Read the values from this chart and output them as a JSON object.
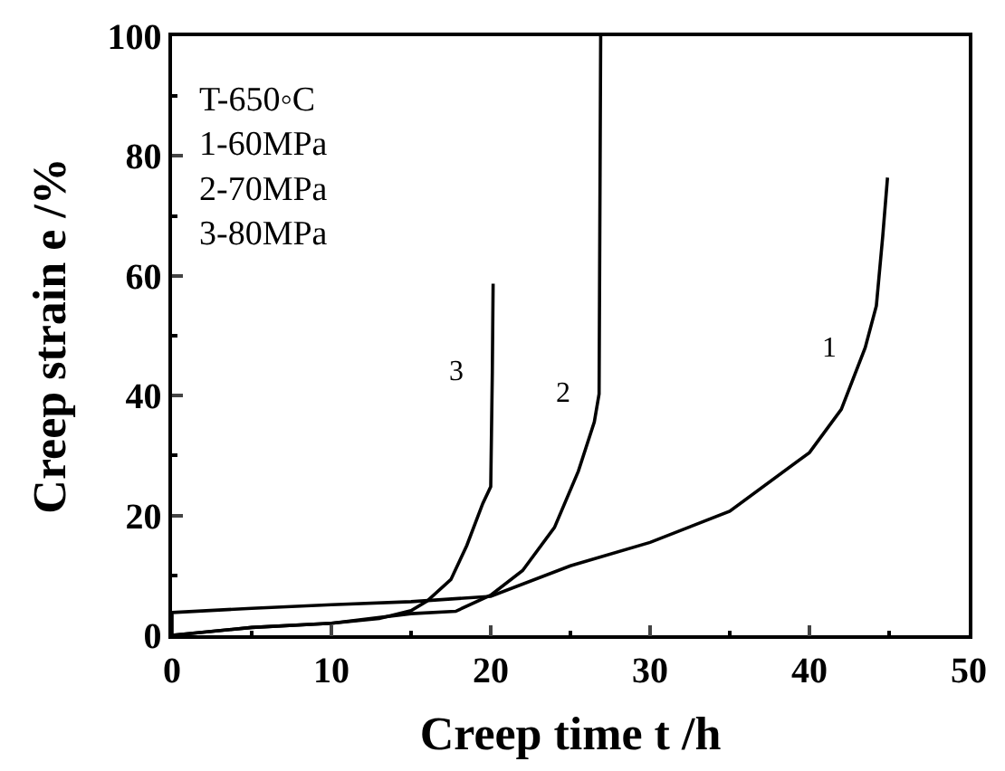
{
  "chart_data": {
    "type": "line",
    "xlabel": "Creep time t /h",
    "ylabel": "Creep strain e /%",
    "xlim": [
      0,
      50
    ],
    "xticks": [
      0,
      10,
      20,
      30,
      40,
      50
    ],
    "ylim": [
      0,
      100
    ],
    "yticks": [
      0,
      20,
      40,
      60,
      80,
      100
    ],
    "legend": false,
    "marker": "none",
    "line_style": "solid",
    "series": [
      {
        "name": "1",
        "color": "#000000",
        "x": [
          0,
          0,
          5,
          10,
          15,
          20,
          25,
          30,
          35,
          40,
          42,
          43.5,
          44.2,
          44.6,
          44.9
        ],
        "values": [
          0,
          3.8,
          4.5,
          5.1,
          5.6,
          6.5,
          11.6,
          15.5,
          20.7,
          30.5,
          37.7,
          48,
          55,
          66.6,
          76.4
        ]
      },
      {
        "name": "2",
        "color": "#000000",
        "x": [
          0,
          5,
          10,
          15,
          17.8,
          20,
          22,
          24,
          25.5,
          26.5,
          26.8,
          26.9
        ],
        "values": [
          0,
          1.3,
          2,
          3.6,
          4.0,
          6.7,
          10.8,
          18,
          27.4,
          35.6,
          40.3,
          100
        ]
      },
      {
        "name": "3",
        "color": "#000000",
        "x": [
          0,
          5,
          10,
          13,
          15,
          16,
          17.5,
          18.5,
          19.5,
          20,
          20.1,
          20.15
        ],
        "values": [
          0,
          1.3,
          2,
          2.8,
          4.1,
          5.7,
          9.3,
          15,
          22,
          24.8,
          43.9,
          58.7
        ]
      }
    ],
    "annotations": [
      "T-650◦C\n1-60MPa\n2-70MPa\n3-80MPa"
    ]
  }
}
